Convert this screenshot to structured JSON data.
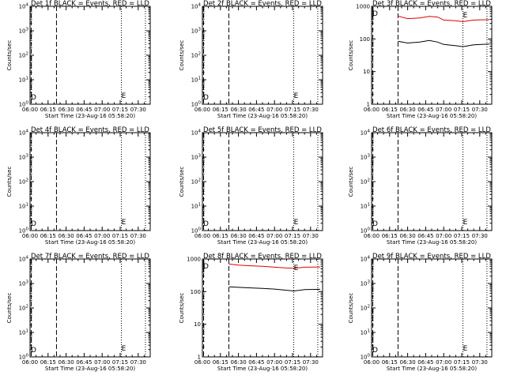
{
  "colors": {
    "background": "#ffffff",
    "axis": "#000000",
    "events": "#000000",
    "lld": "#e00000"
  },
  "chart_data": [
    {
      "type": "line",
      "title": "Det 1f BLACK = Events, RED = LLD",
      "xlabel": "Start Time (23-Aug-16 05:58:20)",
      "ylabel": "Counts/sec",
      "log_y": true,
      "ylim": [
        1,
        10000
      ],
      "yticks": [
        "10^0",
        "10^1",
        "10^2",
        "10^3",
        "10^4"
      ],
      "xticks": [
        "06:00",
        "06:15",
        "06:30",
        "06:45",
        "07:00",
        "07:15",
        "07:30"
      ],
      "vlines_dashed": [
        "06:01",
        "06:22"
      ],
      "vlines_dotted": [
        "07:16",
        "07:36"
      ],
      "markers": [
        {
          "label": "D",
          "at": "06:01"
        },
        {
          "label": "E",
          "at": "07:16"
        }
      ],
      "series": []
    },
    {
      "type": "line",
      "title": "Det 2f BLACK = Events, RED = LLD",
      "xlabel": "Start Time (23-Aug-16 05:58:20)",
      "ylabel": "Counts/sec",
      "log_y": true,
      "ylim": [
        1,
        10000
      ],
      "yticks": [
        "10^0",
        "10^1",
        "10^2",
        "10^3",
        "10^4"
      ],
      "xticks": [
        "06:00",
        "06:15",
        "06:30",
        "06:45",
        "07:00",
        "07:15",
        "07:30"
      ],
      "vlines_dashed": [
        "06:01",
        "06:22"
      ],
      "vlines_dotted": [
        "07:16",
        "07:36"
      ],
      "markers": [
        {
          "label": "D",
          "at": "06:01"
        },
        {
          "label": "E",
          "at": "07:16"
        }
      ],
      "series": []
    },
    {
      "type": "line",
      "title": "Det 3f BLACK = Events, RED = LLD",
      "xlabel": "Start Time (23-Aug-16 05:58:20)",
      "ylabel": "Counts/sec",
      "log_y": true,
      "ylim": [
        1,
        1000
      ],
      "yticks": [
        "1",
        "10",
        "100",
        "1000"
      ],
      "xticks": [
        "06:00",
        "06:15",
        "06:30",
        "06:45",
        "07:00",
        "07:15",
        "07:30"
      ],
      "vlines_dashed": [
        "06:01",
        "06:22"
      ],
      "vlines_dotted": [
        "07:16",
        "07:36"
      ],
      "markers": [
        {
          "label": "D",
          "at": "06:01"
        },
        {
          "label": "E",
          "at": "07:16"
        }
      ],
      "series": [
        {
          "color": "red",
          "points": [
            [
              "06:22",
              500
            ],
            [
              "06:30",
              420
            ],
            [
              "06:40",
              440
            ],
            [
              "06:48",
              490
            ],
            [
              "06:55",
              470
            ],
            [
              "07:00",
              380
            ],
            [
              "07:10",
              360
            ],
            [
              "07:16",
              340
            ],
            [
              "07:25",
              380
            ],
            [
              "07:38",
              390
            ]
          ]
        },
        {
          "color": "black",
          "points": [
            [
              "06:22",
              85
            ],
            [
              "06:30",
              75
            ],
            [
              "06:40",
              80
            ],
            [
              "06:48",
              90
            ],
            [
              "06:55",
              80
            ],
            [
              "07:00",
              68
            ],
            [
              "07:10",
              62
            ],
            [
              "07:16",
              58
            ],
            [
              "07:25",
              66
            ],
            [
              "07:38",
              70
            ]
          ]
        }
      ]
    },
    {
      "type": "line",
      "title": "Det 4f BLACK = Events, RED = LLD",
      "xlabel": "Start Time (23-Aug-16 05:58:20)",
      "ylabel": "Counts/sec",
      "log_y": true,
      "ylim": [
        1,
        10000
      ],
      "yticks": [
        "10^0",
        "10^1",
        "10^2",
        "10^3",
        "10^4"
      ],
      "xticks": [
        "06:00",
        "06:15",
        "06:30",
        "06:45",
        "07:00",
        "07:15",
        "07:30"
      ],
      "vlines_dashed": [
        "06:01",
        "06:22"
      ],
      "vlines_dotted": [
        "07:16",
        "07:36"
      ],
      "markers": [
        {
          "label": "D",
          "at": "06:01"
        },
        {
          "label": "E",
          "at": "07:16"
        }
      ],
      "series": []
    },
    {
      "type": "line",
      "title": "Det 5f BLACK = Events, RED = LLD",
      "xlabel": "Start Time (23-Aug-16 05:58:20)",
      "ylabel": "Counts/sec",
      "log_y": true,
      "ylim": [
        1,
        10000
      ],
      "yticks": [
        "10^0",
        "10^1",
        "10^2",
        "10^3",
        "10^4"
      ],
      "xticks": [
        "06:00",
        "06:15",
        "06:30",
        "06:45",
        "07:00",
        "07:15",
        "07:30"
      ],
      "vlines_dashed": [
        "06:01",
        "06:22"
      ],
      "vlines_dotted": [
        "07:16",
        "07:36"
      ],
      "markers": [
        {
          "label": "D",
          "at": "06:01"
        },
        {
          "label": "E",
          "at": "07:16"
        }
      ],
      "series": []
    },
    {
      "type": "line",
      "title": "Det 6f BLACK = Events, RED = LLD",
      "xlabel": "Start Time (23-Aug-16 05:58:20)",
      "ylabel": "Counts/sec",
      "log_y": true,
      "ylim": [
        1,
        10000
      ],
      "yticks": [
        "10^0",
        "10^1",
        "10^2",
        "10^3",
        "10^4"
      ],
      "xticks": [
        "06:00",
        "06:15",
        "06:30",
        "06:45",
        "07:00",
        "07:15",
        "07:30"
      ],
      "vlines_dashed": [
        "06:01",
        "06:22"
      ],
      "vlines_dotted": [
        "07:16",
        "07:36"
      ],
      "markers": [
        {
          "label": "D",
          "at": "06:01"
        },
        {
          "label": "E",
          "at": "07:16"
        }
      ],
      "series": []
    },
    {
      "type": "line",
      "title": "Det 7f BLACK = Events, RED = LLD",
      "xlabel": "Start Time (23-Aug-16 05:58:20)",
      "ylabel": "Counts/sec",
      "log_y": true,
      "ylim": [
        1,
        10000
      ],
      "yticks": [
        "10^0",
        "10^1",
        "10^2",
        "10^3",
        "10^4"
      ],
      "xticks": [
        "06:00",
        "06:15",
        "06:30",
        "06:45",
        "07:00",
        "07:15",
        "07:30"
      ],
      "vlines_dashed": [
        "06:01",
        "06:22"
      ],
      "vlines_dotted": [
        "07:16",
        "07:36"
      ],
      "markers": [
        {
          "label": "D",
          "at": "06:01"
        },
        {
          "label": "E",
          "at": "07:16"
        }
      ],
      "series": []
    },
    {
      "type": "line",
      "title": "Det 8f BLACK = Events, RED = LLD",
      "xlabel": "Start Time (23-Aug-16 05:58:20)",
      "ylabel": "Counts/sec",
      "log_y": true,
      "ylim": [
        1,
        1000
      ],
      "yticks": [
        "1",
        "10",
        "100",
        "1000"
      ],
      "xticks": [
        "06:00",
        "06:15",
        "06:30",
        "06:45",
        "07:00",
        "07:15",
        "07:30"
      ],
      "vlines_dashed": [
        "06:01",
        "06:22"
      ],
      "vlines_dotted": [
        "07:16",
        "07:36"
      ],
      "markers": [
        {
          "label": "D",
          "at": "06:01"
        },
        {
          "label": "E",
          "at": "07:16"
        }
      ],
      "series": [
        {
          "color": "red",
          "points": [
            [
              "06:22",
              700
            ],
            [
              "06:30",
              650
            ],
            [
              "06:40",
              620
            ],
            [
              "06:50",
              600
            ],
            [
              "07:00",
              560
            ],
            [
              "07:10",
              530
            ],
            [
              "07:16",
              520
            ],
            [
              "07:25",
              560
            ],
            [
              "07:38",
              570
            ]
          ]
        },
        {
          "color": "black",
          "points": [
            [
              "06:22",
              140
            ],
            [
              "06:30",
              135
            ],
            [
              "06:40",
              130
            ],
            [
              "06:50",
              125
            ],
            [
              "07:00",
              120
            ],
            [
              "07:10",
              110
            ],
            [
              "07:16",
              105
            ],
            [
              "07:25",
              115
            ],
            [
              "07:38",
              118
            ]
          ]
        }
      ]
    },
    {
      "type": "line",
      "title": "Det 9f BLACK = Events, RED = LLD",
      "xlabel": "Start Time (23-Aug-16 05:58:20)",
      "ylabel": "Counts/sec",
      "log_y": true,
      "ylim": [
        1,
        10000
      ],
      "yticks": [
        "10^0",
        "10^1",
        "10^2",
        "10^3",
        "10^4"
      ],
      "xticks": [
        "06:00",
        "06:15",
        "06:30",
        "06:45",
        "07:00",
        "07:15",
        "07:30"
      ],
      "vlines_dashed": [
        "06:01",
        "06:22"
      ],
      "vlines_dotted": [
        "07:16",
        "07:36"
      ],
      "markers": [
        {
          "label": "D",
          "at": "06:01"
        },
        {
          "label": "E",
          "at": "07:16"
        }
      ],
      "series": []
    }
  ]
}
